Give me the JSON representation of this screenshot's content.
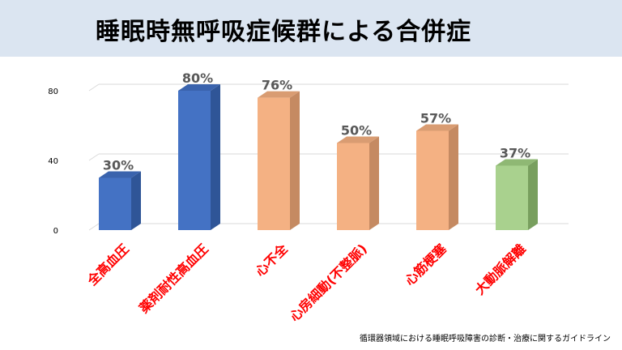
{
  "header": {
    "title": "睡眠時無呼吸症候群による合併症"
  },
  "chart_data": {
    "type": "bar",
    "title": "睡眠時無呼吸症候群による合併症",
    "categories": [
      "全高血圧",
      "薬剤耐性高血圧",
      "心不全",
      "心房細動(不整脈)",
      "心筋梗塞",
      "大動脈解離"
    ],
    "values": [
      30,
      80,
      76,
      50,
      57,
      37
    ],
    "data_labels": [
      "30%",
      "80%",
      "76%",
      "50%",
      "57%",
      "37%"
    ],
    "y_ticks": [
      "0",
      "40",
      "80"
    ],
    "ylim": [
      0,
      90
    ],
    "grid": true,
    "legend": "none",
    "colors": [
      "#4472c4",
      "#4472c4",
      "#f4b183",
      "#f4b183",
      "#f4b183",
      "#a9d18e"
    ],
    "side_colors": [
      "#2f5597",
      "#2f5597",
      "#c58a62",
      "#c58a62",
      "#c58a62",
      "#789f5e"
    ],
    "top_colors": [
      "#3a63ad",
      "#3a63ad",
      "#d99c72",
      "#d99c72",
      "#d99c72",
      "#8fb874"
    ],
    "category_label_color": "#ff0000"
  },
  "footer": {
    "source": "循環器領域における睡眠呼吸障害の診断・治療に関するガイドライン"
  }
}
